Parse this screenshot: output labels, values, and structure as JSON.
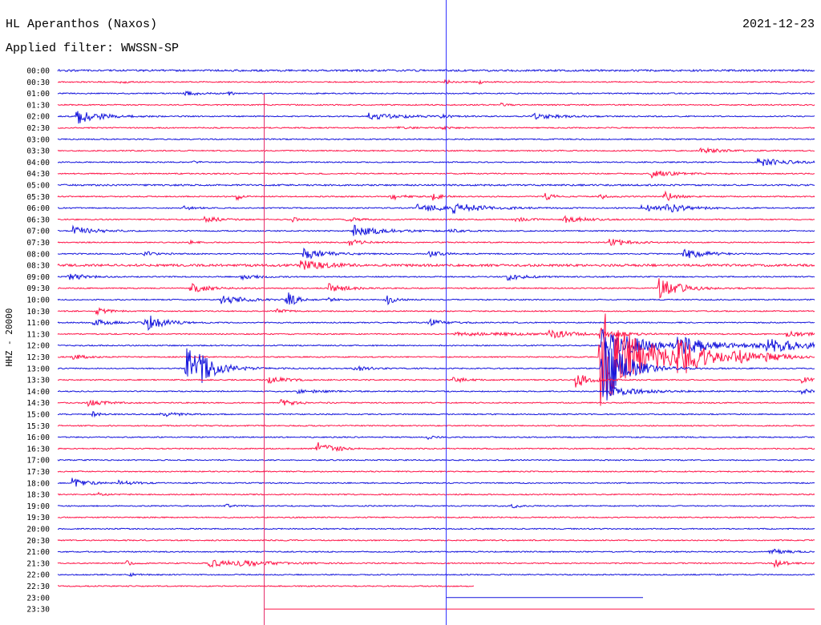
{
  "chart_data": {
    "type": "line",
    "title": "HL Aperanthos (Naxos)",
    "subtitle": "Applied filter: WWSSN-SP",
    "date": "2021-12-23",
    "ylabel": "HHZ - 20000",
    "xlim": [
      0,
      30
    ],
    "noise": 0.05,
    "colors": {
      "even": "#1414dc",
      "odd": "#ff1448"
    },
    "markers": [
      {
        "minute": 15.38,
        "color": "#3333ff",
        "start_row": null
      },
      {
        "minute": 8.17,
        "color": "#e62e6b",
        "start_row": "01:00"
      }
    ],
    "rows": [
      {
        "time": "00:00",
        "noise": 0.08,
        "events": []
      },
      {
        "time": "00:30",
        "events": [
          {
            "minute": 2.48,
            "amp": 0.15,
            "dur": 0.2
          },
          {
            "minute": 15.35,
            "amp": 0.2,
            "dur": 0.2
          },
          {
            "minute": 16.72,
            "amp": 0.15,
            "dur": 0.2
          }
        ]
      },
      {
        "time": "01:00",
        "events": [
          {
            "minute": 5.02,
            "amp": 0.2,
            "dur": 0.5
          },
          {
            "minute": 6.77,
            "amp": 0.15,
            "dur": 0.2
          }
        ]
      },
      {
        "time": "01:30",
        "events": [
          {
            "minute": 17.57,
            "amp": 0.15,
            "dur": 0.2
          }
        ]
      },
      {
        "time": "02:00",
        "events": [
          {
            "minute": 0.73,
            "amp": 0.75,
            "dur": 0.8
          },
          {
            "minute": 12.33,
            "amp": 0.3,
            "dur": 1.2
          },
          {
            "minute": 15.19,
            "amp": 0.15,
            "dur": 0.3
          },
          {
            "minute": 18.84,
            "amp": 0.22,
            "dur": 1.0
          }
        ]
      },
      {
        "time": "02:30",
        "events": [
          {
            "minute": 13.5,
            "amp": 0.12,
            "dur": 0.5
          },
          {
            "minute": 15.2,
            "amp": 0.15,
            "dur": 0.3
          }
        ]
      },
      {
        "time": "03:00",
        "events": []
      },
      {
        "time": "03:30",
        "events": [
          {
            "minute": 25.36,
            "amp": 0.25,
            "dur": 0.8
          }
        ]
      },
      {
        "time": "04:00",
        "events": [
          {
            "minute": 5.34,
            "amp": 0.15,
            "dur": 0.2
          },
          {
            "minute": 27.74,
            "amp": 0.4,
            "dur": 1.0
          }
        ]
      },
      {
        "time": "04:30",
        "events": [
          {
            "minute": 23.52,
            "amp": 0.35,
            "dur": 0.7
          }
        ]
      },
      {
        "time": "05:00",
        "noise": 0.07,
        "events": []
      },
      {
        "time": "05:30",
        "events": [
          {
            "minute": 7.09,
            "amp": 0.3,
            "dur": 0.2
          },
          {
            "minute": 13.22,
            "amp": 0.3,
            "dur": 0.4
          },
          {
            "minute": 14.87,
            "amp": 0.3,
            "dur": 0.3
          },
          {
            "minute": 19.32,
            "amp": 0.3,
            "dur": 0.3
          },
          {
            "minute": 21.39,
            "amp": 0.3,
            "dur": 0.3
          },
          {
            "minute": 24.03,
            "amp": 0.45,
            "dur": 0.4
          }
        ]
      },
      {
        "time": "06:00",
        "events": [
          {
            "minute": 5.0,
            "amp": 0.15,
            "dur": 0.5
          },
          {
            "minute": 14.24,
            "amp": 0.3,
            "dur": 1.5
          },
          {
            "minute": 15.67,
            "amp": 0.35,
            "dur": 1.0
          },
          {
            "minute": 23.14,
            "amp": 0.3,
            "dur": 1.0
          },
          {
            "minute": 24.09,
            "amp": 0.3,
            "dur": 0.8
          }
        ]
      },
      {
        "time": "06:30",
        "events": [
          {
            "minute": 5.82,
            "amp": 0.25,
            "dur": 0.6
          },
          {
            "minute": 9.31,
            "amp": 0.2,
            "dur": 0.2
          },
          {
            "minute": 11.38,
            "amp": 0.2,
            "dur": 0.5
          },
          {
            "minute": 18.05,
            "amp": 0.2,
            "dur": 0.5
          },
          {
            "minute": 20.05,
            "amp": 0.4,
            "dur": 0.6
          }
        ]
      },
      {
        "time": "07:00",
        "events": [
          {
            "minute": 0.57,
            "amp": 0.4,
            "dur": 0.8
          },
          {
            "minute": 11.69,
            "amp": 0.5,
            "dur": 1.0
          },
          {
            "minute": 15.5,
            "amp": 0.15,
            "dur": 0.5
          }
        ]
      },
      {
        "time": "07:30",
        "events": [
          {
            "minute": 5.24,
            "amp": 0.25,
            "dur": 0.2
          },
          {
            "minute": 11.54,
            "amp": 0.3,
            "dur": 0.5
          },
          {
            "minute": 21.86,
            "amp": 0.3,
            "dur": 0.8
          }
        ]
      },
      {
        "time": "08:00",
        "events": [
          {
            "minute": 3.43,
            "amp": 0.2,
            "dur": 0.5
          },
          {
            "minute": 9.72,
            "amp": 0.5,
            "dur": 0.8
          },
          {
            "minute": 14.71,
            "amp": 0.25,
            "dur": 0.5
          },
          {
            "minute": 24.79,
            "amp": 0.5,
            "dur": 0.8
          }
        ]
      },
      {
        "time": "08:30",
        "noise": 0.1,
        "events": [
          {
            "minute": 9.63,
            "amp": 0.45,
            "dur": 0.8
          }
        ]
      },
      {
        "time": "09:00",
        "events": [
          {
            "minute": 0.41,
            "amp": 0.3,
            "dur": 0.6
          },
          {
            "minute": 7.25,
            "amp": 0.25,
            "dur": 0.6
          },
          {
            "minute": 17.83,
            "amp": 0.3,
            "dur": 0.6
          }
        ]
      },
      {
        "time": "09:30",
        "events": [
          {
            "minute": 5.24,
            "amp": 0.45,
            "dur": 0.6
          },
          {
            "minute": 10.74,
            "amp": 0.4,
            "dur": 0.6
          },
          {
            "minute": 23.83,
            "amp": 0.9,
            "dur": 0.8
          }
        ]
      },
      {
        "time": "10:00",
        "events": [
          {
            "minute": 6.45,
            "amp": 0.45,
            "dur": 0.8
          },
          {
            "minute": 9.06,
            "amp": 0.9,
            "dur": 0.3
          },
          {
            "minute": 10.74,
            "amp": 0.2,
            "dur": 0.3
          },
          {
            "minute": 13.03,
            "amp": 0.5,
            "dur": 0.3
          }
        ]
      },
      {
        "time": "10:30",
        "events": [
          {
            "minute": 1.53,
            "amp": 0.3,
            "dur": 0.4
          },
          {
            "minute": 8.68,
            "amp": 0.2,
            "dur": 0.3
          }
        ]
      },
      {
        "time": "11:00",
        "events": [
          {
            "minute": 1.4,
            "amp": 0.3,
            "dur": 0.6
          },
          {
            "minute": 3.43,
            "amp": 0.85,
            "dur": 0.6
          },
          {
            "minute": 14.71,
            "amp": 0.3,
            "dur": 0.6
          }
        ]
      },
      {
        "time": "11:30",
        "events": [
          {
            "minute": 15.7,
            "amp": 0.12,
            "dur": 4
          },
          {
            "minute": 19.48,
            "amp": 0.35,
            "dur": 0.8
          },
          {
            "minute": 21.5,
            "amp": 0.6,
            "dur": 0.5
          },
          {
            "minute": 28.86,
            "amp": 0.25,
            "dur": 0.8
          }
        ]
      },
      {
        "time": "12:00",
        "events": [
          {
            "minute": 21.55,
            "amp": 1.5,
            "dur": 1.0
          },
          {
            "minute": 22.0,
            "amp": 0.25,
            "dur": 8
          },
          {
            "minute": 24.57,
            "amp": 0.8,
            "dur": 0.8
          },
          {
            "minute": 28.06,
            "amp": 0.6,
            "dur": 1.0
          }
        ]
      },
      {
        "time": "12:30",
        "events": [
          {
            "minute": 0.57,
            "amp": 0.2,
            "dur": 0.5
          },
          {
            "minute": 21.48,
            "amp": 4.5,
            "dur": 1.5
          },
          {
            "minute": 24.57,
            "amp": 1.3,
            "dur": 1.0
          },
          {
            "minute": 26.79,
            "amp": 0.5,
            "dur": 0.8
          },
          {
            "minute": 28.06,
            "amp": 0.3,
            "dur": 0.6
          }
        ]
      },
      {
        "time": "13:00",
        "events": [
          {
            "minute": 5.08,
            "amp": 2.0,
            "dur": 0.8
          },
          {
            "minute": 5.5,
            "amp": 0.5,
            "dur": 0.5
          },
          {
            "minute": 11.69,
            "amp": 0.3,
            "dur": 0.5
          },
          {
            "minute": 21.55,
            "amp": 3.8,
            "dur": 0.8
          }
        ]
      },
      {
        "time": "13:30",
        "events": [
          {
            "minute": 8.36,
            "amp": 0.35,
            "dur": 0.6
          },
          {
            "minute": 15.67,
            "amp": 0.3,
            "dur": 0.4
          },
          {
            "minute": 20.53,
            "amp": 0.7,
            "dur": 0.5
          },
          {
            "minute": 29.49,
            "amp": 0.25,
            "dur": 0.4
          }
        ]
      },
      {
        "time": "14:00",
        "events": [
          {
            "minute": 9.5,
            "amp": 0.15,
            "dur": 1.0
          },
          {
            "minute": 21.86,
            "amp": 0.4,
            "dur": 1.2
          },
          {
            "minute": 29.49,
            "amp": 0.2,
            "dur": 0.5
          }
        ]
      },
      {
        "time": "14:30",
        "events": [
          {
            "minute": 1.21,
            "amp": 0.25,
            "dur": 0.6
          },
          {
            "minute": 8.83,
            "amp": 0.25,
            "dur": 0.6
          }
        ]
      },
      {
        "time": "15:00",
        "events": [
          {
            "minute": 1.37,
            "amp": 0.2,
            "dur": 0.3
          },
          {
            "minute": 4.07,
            "amp": 0.25,
            "dur": 0.6
          }
        ]
      },
      {
        "time": "15:30",
        "events": []
      },
      {
        "time": "16:00",
        "events": [
          {
            "minute": 14.65,
            "amp": 0.2,
            "dur": 0.2
          }
        ]
      },
      {
        "time": "16:30",
        "events": [
          {
            "minute": 10.26,
            "amp": 0.6,
            "dur": 0.6
          }
        ]
      },
      {
        "time": "17:00",
        "events": []
      },
      {
        "time": "17:30",
        "events": []
      },
      {
        "time": "18:00",
        "events": [
          {
            "minute": 0.57,
            "amp": 0.45,
            "dur": 0.5
          },
          {
            "minute": 2.42,
            "amp": 0.2,
            "dur": 0.6
          }
        ]
      },
      {
        "time": "18:30",
        "events": [
          {
            "minute": 1.53,
            "amp": 0.2,
            "dur": 0.3
          }
        ]
      },
      {
        "time": "19:00",
        "events": [
          {
            "minute": 6.67,
            "amp": 0.2,
            "dur": 0.2
          },
          {
            "minute": 17.96,
            "amp": 0.35,
            "dur": 0.2
          }
        ]
      },
      {
        "time": "19:30",
        "events": []
      },
      {
        "time": "20:00",
        "events": []
      },
      {
        "time": "20:30",
        "events": []
      },
      {
        "time": "21:00",
        "events": [
          {
            "minute": 28.22,
            "amp": 0.25,
            "dur": 0.6
          }
        ]
      },
      {
        "time": "21:30",
        "events": [
          {
            "minute": 2.73,
            "amp": 0.2,
            "dur": 0.3
          },
          {
            "minute": 5.97,
            "amp": 0.3,
            "dur": 1.5
          },
          {
            "minute": 7.25,
            "amp": 0.3,
            "dur": 0.6
          },
          {
            "minute": 28.38,
            "amp": 0.35,
            "dur": 0.4
          }
        ]
      },
      {
        "time": "22:00",
        "events": [
          {
            "minute": 2.8,
            "amp": 0.15,
            "dur": 0.3
          }
        ]
      },
      {
        "time": "22:30",
        "end": 16.5,
        "events": []
      },
      {
        "time": "23:00",
        "start": 15.38,
        "end": 23.2,
        "noise": 0,
        "events": []
      },
      {
        "time": "23:30",
        "start": 8.17,
        "end": 30,
        "noise": 0,
        "events": []
      }
    ]
  }
}
